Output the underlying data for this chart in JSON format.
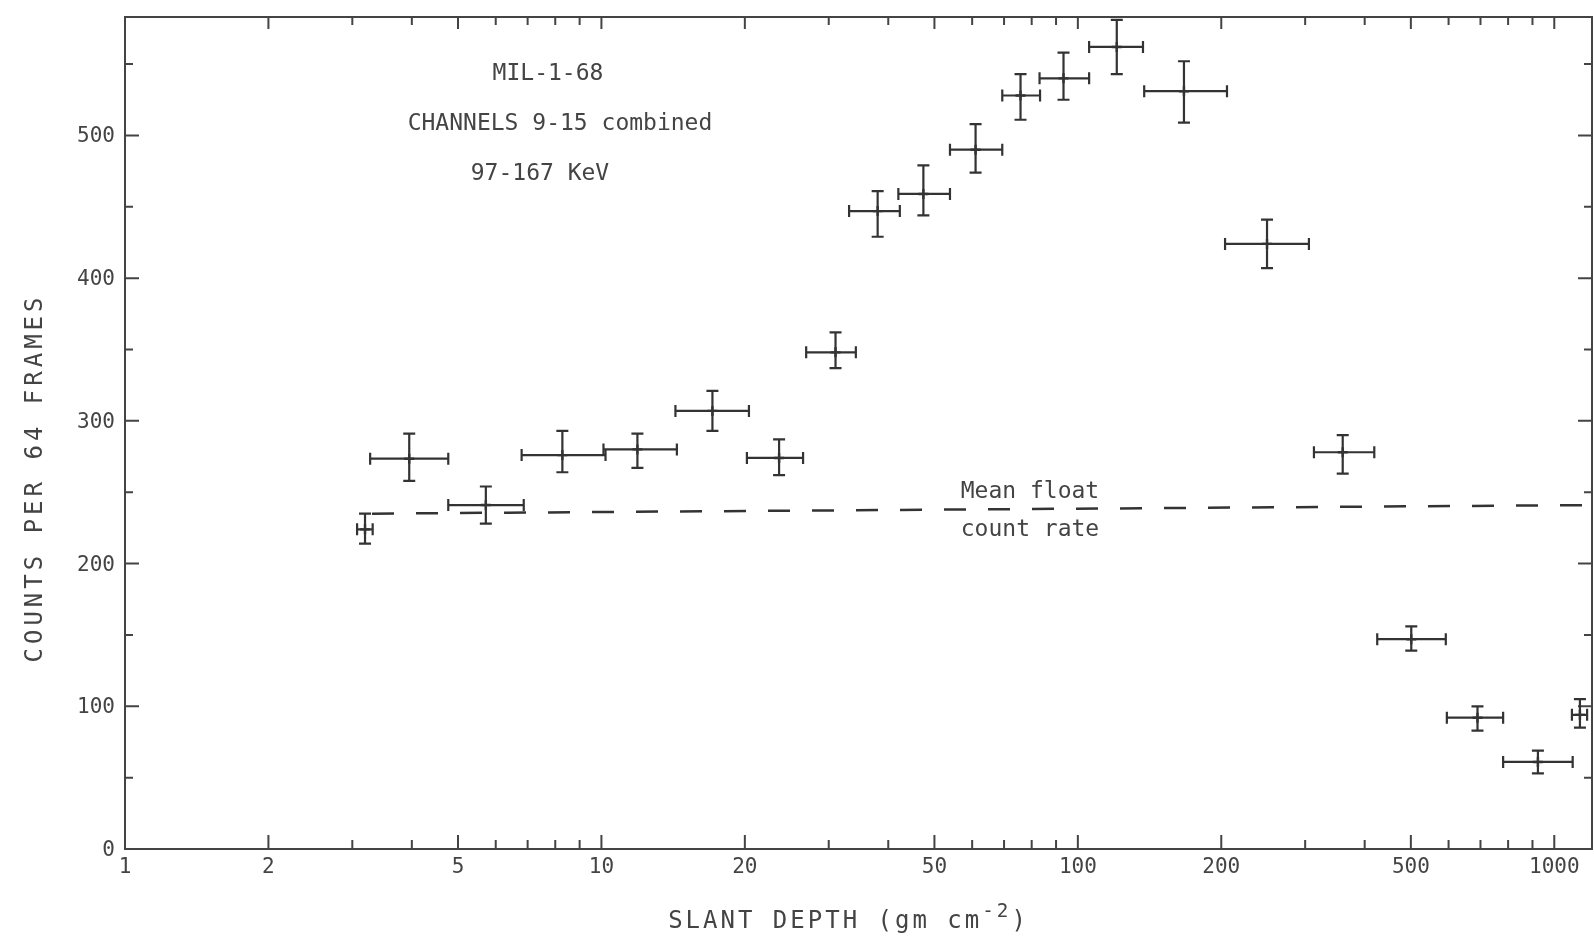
{
  "chart_data": {
    "type": "scatter",
    "xlabel": "SLANT DEPTH (gm cm$^{-2}$)",
    "ylabel": "COUNTS PER 64 FRAMES",
    "annotations": [
      "MIL-1-68",
      "CHANNELS 9-15 combined",
      "97-167 KeV",
      "Mean float\ncount rate"
    ],
    "log": "x",
    "grid": false,
    "xlim": [
      1,
      1200
    ],
    "ylim": [
      0,
      583
    ],
    "xticks": [
      1,
      2,
      {
        "value": 3,
        "label": null
      },
      {
        "value": 4,
        "label": null
      },
      5,
      {
        "value": 6,
        "label": null
      },
      {
        "value": 7,
        "label": null
      },
      {
        "value": 8,
        "label": null
      },
      {
        "value": 9,
        "label": null
      },
      10,
      20,
      {
        "value": 30,
        "label": null
      },
      {
        "value": 40,
        "label": null
      },
      50,
      {
        "value": 60,
        "label": null
      },
      {
        "value": 70,
        "label": null
      },
      {
        "value": 80,
        "label": null
      },
      {
        "value": 90,
        "label": null
      },
      100,
      200,
      {
        "value": 300,
        "label": null
      },
      {
        "value": 400,
        "label": null
      },
      500,
      {
        "value": 600,
        "label": null
      },
      {
        "value": 700,
        "label": null
      },
      {
        "value": 800,
        "label": null
      },
      {
        "value": 900,
        "label": null
      },
      1000
    ],
    "yticks": [
      0,
      {
        "value": 50,
        "label": null
      },
      100,
      {
        "value": 150,
        "label": null
      },
      200,
      {
        "value": 250,
        "label": null
      },
      300,
      {
        "value": 350,
        "label": null
      },
      400,
      {
        "value": 450,
        "label": null
      },
      500,
      {
        "value": 550,
        "label": null
      }
    ],
    "series": [
      {
        "color": "#333333",
        "marker": "cross",
        "x": [
          3.19,
          3.95,
          5.72,
          8.28,
          11.9,
          17.1,
          23.6,
          31.0,
          38.0,
          47.4,
          61.0,
          75.8,
          93.3,
          120.7,
          167,
          249.5,
          359.7,
          501,
          690,
          924,
          1132
        ],
        "values": [
          224,
          273.5,
          241,
          276,
          280,
          307,
          274,
          348,
          447,
          459,
          490,
          528,
          540,
          562,
          531,
          424,
          278,
          147,
          92,
          61,
          94
        ],
        "errors": [
          [
            214,
            235
          ],
          [
            258,
            291
          ],
          [
            228,
            254
          ],
          [
            264,
            293
          ],
          [
            267,
            291
          ],
          [
            293,
            321
          ],
          [
            262,
            287
          ],
          [
            337,
            362
          ],
          [
            429,
            461
          ],
          [
            444,
            479
          ],
          [
            474,
            508
          ],
          [
            511,
            543
          ],
          [
            525,
            558
          ],
          [
            543,
            581
          ],
          [
            509,
            552
          ],
          [
            407,
            441
          ],
          [
            263,
            290
          ],
          [
            139,
            156
          ],
          [
            83,
            100
          ],
          [
            53,
            69
          ],
          [
            85,
            105
          ]
        ],
        "xerrors": [
          [
            3.07,
            3.31
          ],
          [
            3.27,
            4.77
          ],
          [
            4.77,
            6.87
          ],
          [
            6.8,
            10.2
          ],
          [
            10.1,
            14.4
          ],
          [
            14.3,
            20.4
          ],
          [
            20.2,
            26.5
          ],
          [
            26.9,
            34.2
          ],
          [
            33.1,
            42.3
          ],
          [
            42.0,
            53.9
          ],
          [
            53.9,
            69.4
          ],
          [
            69.4,
            83.3
          ],
          [
            83.1,
            105.6
          ],
          [
            105.6,
            137
          ],
          [
            137.8,
            205.6
          ],
          [
            203.7,
            305.5
          ],
          [
            313,
            419
          ],
          [
            425,
            592
          ],
          [
            595,
            781
          ],
          [
            781,
            1093
          ],
          [
            1089,
            1172
          ]
        ]
      },
      {
        "type": "line",
        "color": "#333333",
        "marker": "none",
        "line_style": "dashed",
        "x": [
          3.3,
          1200
        ],
        "values": [
          235,
          241
        ]
      }
    ]
  }
}
